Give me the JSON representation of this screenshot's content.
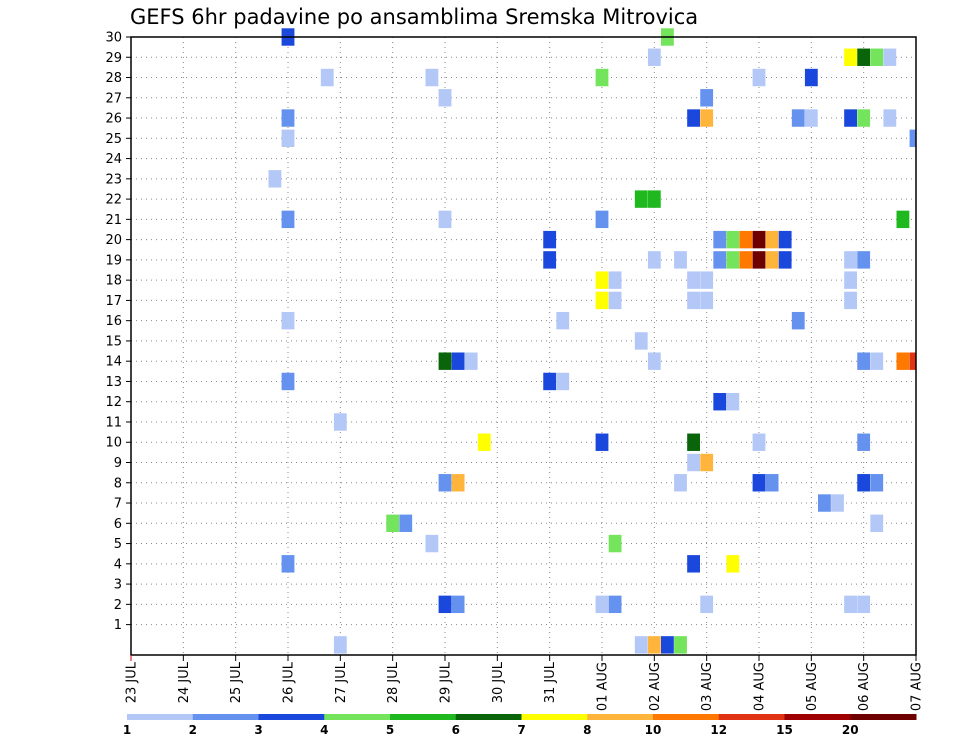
{
  "chart_data": {
    "type": "heatmap",
    "title": "GEFS 6hr padavine po ansamblima Sremska Mitrovica",
    "xlabel": "",
    "ylabel": "",
    "x_range": [
      0,
      60
    ],
    "x_unit_note": "6-hour steps",
    "ylim": [
      0,
      30
    ],
    "grid": true,
    "x_ticks": [
      {
        "label": "23 JUL",
        "pos": 0
      },
      {
        "label": "24 JUL",
        "pos": 4
      },
      {
        "label": "25 JUL",
        "pos": 8
      },
      {
        "label": "26 JUL",
        "pos": 12
      },
      {
        "label": "27 JUL",
        "pos": 16
      },
      {
        "label": "28 JUL",
        "pos": 20
      },
      {
        "label": "29 JUL",
        "pos": 24
      },
      {
        "label": "30 JUL",
        "pos": 28
      },
      {
        "label": "31 JUL",
        "pos": 32
      },
      {
        "label": "01 AUG",
        "pos": 36
      },
      {
        "label": "02 AUG",
        "pos": 40
      },
      {
        "label": "03 AUG",
        "pos": 44
      },
      {
        "label": "04 AUG",
        "pos": 48
      },
      {
        "label": "05 AUG",
        "pos": 52
      },
      {
        "label": "06 AUG",
        "pos": 56
      },
      {
        "label": "07 AUG",
        "pos": 60
      }
    ],
    "y_ticks": [
      "1",
      "2",
      "3",
      "4",
      "5",
      "6",
      "7",
      "8",
      "9",
      "10",
      "11",
      "12",
      "13",
      "14",
      "15",
      "16",
      "17",
      "18",
      "19",
      "20",
      "21",
      "22",
      "23",
      "24",
      "25",
      "26",
      "27",
      "28",
      "29",
      "30"
    ],
    "colorbar": {
      "colors": [
        "#b4c8f8",
        "#6492ee",
        "#1a48dc",
        "#74e45c",
        "#1fb91f",
        "#0a640a",
        "#ffff00",
        "#ffb43c",
        "#ff7800",
        "#e13214",
        "#a00000",
        "#6e0000"
      ],
      "labels": [
        "1",
        "2",
        "3",
        "4",
        "5",
        "6",
        "7",
        "8",
        "10",
        "12",
        "15",
        "20"
      ]
    },
    "cells": [
      {
        "t": 12,
        "m": 30,
        "c": 2
      },
      {
        "t": 41,
        "m": 30,
        "c": 3
      },
      {
        "t": 40,
        "m": 29,
        "c": 0
      },
      {
        "t": 55,
        "m": 29,
        "c": 6
      },
      {
        "t": 56,
        "m": 29,
        "c": 5
      },
      {
        "t": 57,
        "m": 29,
        "c": 3
      },
      {
        "t": 58,
        "m": 29,
        "c": 0
      },
      {
        "t": 15,
        "m": 28,
        "c": 0
      },
      {
        "t": 23,
        "m": 28,
        "c": 0
      },
      {
        "t": 36,
        "m": 28,
        "c": 3
      },
      {
        "t": 48,
        "m": 28,
        "c": 0
      },
      {
        "t": 52,
        "m": 28,
        "c": 2
      },
      {
        "t": 24,
        "m": 27,
        "c": 0
      },
      {
        "t": 44,
        "m": 27,
        "c": 1
      },
      {
        "t": 12,
        "m": 26,
        "c": 1
      },
      {
        "t": 43,
        "m": 26,
        "c": 2
      },
      {
        "t": 44,
        "m": 26,
        "c": 7
      },
      {
        "t": 51,
        "m": 26,
        "c": 1
      },
      {
        "t": 52,
        "m": 26,
        "c": 0
      },
      {
        "t": 55,
        "m": 26,
        "c": 2
      },
      {
        "t": 56,
        "m": 26,
        "c": 3
      },
      {
        "t": 58,
        "m": 26,
        "c": 0
      },
      {
        "t": 12,
        "m": 25,
        "c": 0
      },
      {
        "t": 60,
        "m": 25,
        "c": 1
      },
      {
        "t": 11,
        "m": 23,
        "c": 0
      },
      {
        "t": 39,
        "m": 22,
        "c": 4
      },
      {
        "t": 40,
        "m": 22,
        "c": 4
      },
      {
        "t": 12,
        "m": 21,
        "c": 1
      },
      {
        "t": 24,
        "m": 21,
        "c": 0
      },
      {
        "t": 36,
        "m": 21,
        "c": 1
      },
      {
        "t": 59,
        "m": 21,
        "c": 4
      },
      {
        "t": 32,
        "m": 20,
        "c": 2
      },
      {
        "t": 45,
        "m": 20,
        "c": 1
      },
      {
        "t": 46,
        "m": 20,
        "c": 3
      },
      {
        "t": 47,
        "m": 20,
        "c": 8
      },
      {
        "t": 48,
        "m": 20,
        "c": 11
      },
      {
        "t": 49,
        "m": 20,
        "c": 7
      },
      {
        "t": 50,
        "m": 20,
        "c": 2
      },
      {
        "t": 32,
        "m": 19,
        "c": 2
      },
      {
        "t": 45,
        "m": 19,
        "c": 1
      },
      {
        "t": 46,
        "m": 19,
        "c": 3
      },
      {
        "t": 47,
        "m": 19,
        "c": 8
      },
      {
        "t": 48,
        "m": 19,
        "c": 11
      },
      {
        "t": 49,
        "m": 19,
        "c": 7
      },
      {
        "t": 50,
        "m": 19,
        "c": 2
      },
      {
        "t": 40,
        "m": 19,
        "c": 0
      },
      {
        "t": 42,
        "m": 19,
        "c": 0
      },
      {
        "t": 55,
        "m": 19,
        "c": 0
      },
      {
        "t": 56,
        "m": 19,
        "c": 1
      },
      {
        "t": 36,
        "m": 18,
        "c": 6
      },
      {
        "t": 37,
        "m": 18,
        "c": 0
      },
      {
        "t": 43,
        "m": 18,
        "c": 0
      },
      {
        "t": 44,
        "m": 18,
        "c": 0
      },
      {
        "t": 55,
        "m": 18,
        "c": 0
      },
      {
        "t": 36,
        "m": 17,
        "c": 6
      },
      {
        "t": 37,
        "m": 17,
        "c": 0
      },
      {
        "t": 43,
        "m": 17,
        "c": 0
      },
      {
        "t": 44,
        "m": 17,
        "c": 0
      },
      {
        "t": 55,
        "m": 17,
        "c": 0
      },
      {
        "t": 12,
        "m": 16,
        "c": 0
      },
      {
        "t": 33,
        "m": 16,
        "c": 0
      },
      {
        "t": 51,
        "m": 16,
        "c": 1
      },
      {
        "t": 39,
        "m": 15,
        "c": 0
      },
      {
        "t": 24,
        "m": 14,
        "c": 5
      },
      {
        "t": 25,
        "m": 14,
        "c": 2
      },
      {
        "t": 26,
        "m": 14,
        "c": 0
      },
      {
        "t": 40,
        "m": 14,
        "c": 0
      },
      {
        "t": 56,
        "m": 14,
        "c": 1
      },
      {
        "t": 57,
        "m": 14,
        "c": 0
      },
      {
        "t": 59,
        "m": 14,
        "c": 8
      },
      {
        "t": 60,
        "m": 14,
        "c": 9
      },
      {
        "t": 12,
        "m": 13,
        "c": 1
      },
      {
        "t": 32,
        "m": 13,
        "c": 2
      },
      {
        "t": 33,
        "m": 13,
        "c": 0
      },
      {
        "t": 45,
        "m": 12,
        "c": 2
      },
      {
        "t": 46,
        "m": 12,
        "c": 0
      },
      {
        "t": 16,
        "m": 11,
        "c": 0
      },
      {
        "t": 27,
        "m": 10,
        "c": 6
      },
      {
        "t": 36,
        "m": 10,
        "c": 2
      },
      {
        "t": 43,
        "m": 10,
        "c": 5
      },
      {
        "t": 48,
        "m": 10,
        "c": 0
      },
      {
        "t": 56,
        "m": 10,
        "c": 1
      },
      {
        "t": 43,
        "m": 9,
        "c": 0
      },
      {
        "t": 44,
        "m": 9,
        "c": 7
      },
      {
        "t": 24,
        "m": 8,
        "c": 1
      },
      {
        "t": 25,
        "m": 8,
        "c": 7
      },
      {
        "t": 42,
        "m": 8,
        "c": 0
      },
      {
        "t": 48,
        "m": 8,
        "c": 2
      },
      {
        "t": 49,
        "m": 8,
        "c": 1
      },
      {
        "t": 56,
        "m": 8,
        "c": 2
      },
      {
        "t": 57,
        "m": 8,
        "c": 1
      },
      {
        "t": 53,
        "m": 7,
        "c": 1
      },
      {
        "t": 54,
        "m": 7,
        "c": 0
      },
      {
        "t": 20,
        "m": 6,
        "c": 3
      },
      {
        "t": 21,
        "m": 6,
        "c": 1
      },
      {
        "t": 57,
        "m": 6,
        "c": 0
      },
      {
        "t": 23,
        "m": 5,
        "c": 0
      },
      {
        "t": 37,
        "m": 5,
        "c": 3
      },
      {
        "t": 12,
        "m": 4,
        "c": 1
      },
      {
        "t": 43,
        "m": 4,
        "c": 2
      },
      {
        "t": 46,
        "m": 4,
        "c": 6
      },
      {
        "t": 24,
        "m": 2,
        "c": 2
      },
      {
        "t": 25,
        "m": 2,
        "c": 1
      },
      {
        "t": 36,
        "m": 2,
        "c": 0
      },
      {
        "t": 37,
        "m": 2,
        "c": 1
      },
      {
        "t": 44,
        "m": 2,
        "c": 0
      },
      {
        "t": 55,
        "m": 2,
        "c": 0
      },
      {
        "t": 56,
        "m": 2,
        "c": 0
      },
      {
        "t": 16,
        "m": 0,
        "c": 0
      },
      {
        "t": 39,
        "m": 0,
        "c": 0
      },
      {
        "t": 40,
        "m": 0,
        "c": 7
      },
      {
        "t": 41,
        "m": 0,
        "c": 2
      },
      {
        "t": 42,
        "m": 0,
        "c": 3
      }
    ]
  }
}
